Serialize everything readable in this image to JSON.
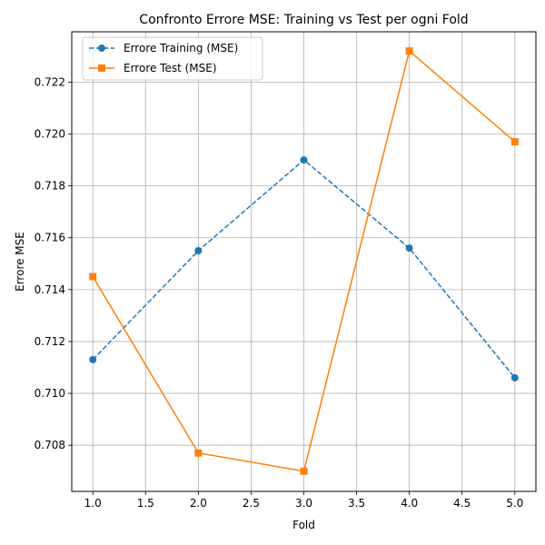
{
  "chart_data": {
    "type": "line",
    "title": "Confronto Errore MSE: Training vs Test per ogni Fold",
    "xlabel": "Fold",
    "ylabel": "Errore MSE",
    "xlim": [
      0.8,
      5.2
    ],
    "ylim": [
      0.70622,
      0.72394
    ],
    "xticks": [
      "1.0",
      "1.5",
      "2.0",
      "2.5",
      "3.0",
      "3.5",
      "4.0",
      "4.5",
      "5.0"
    ],
    "yticks": [
      "0.708",
      "0.710",
      "0.712",
      "0.714",
      "0.716",
      "0.718",
      "0.720",
      "0.722"
    ],
    "grid": true,
    "legend_position": "upper-left",
    "x": [
      1,
      2,
      3,
      4,
      5
    ],
    "series": [
      {
        "name": "Errore Training (MSE)",
        "values": [
          0.7113,
          0.7155,
          0.719,
          0.7156,
          0.7106
        ],
        "color": "#1f77b4",
        "linestyle": "dashed",
        "marker": "circle"
      },
      {
        "name": "Errore Test (MSE)",
        "values": [
          0.7145,
          0.7077,
          0.707,
          0.7232,
          0.7197
        ],
        "color": "#ff7f0e",
        "linestyle": "solid",
        "marker": "square"
      }
    ]
  }
}
